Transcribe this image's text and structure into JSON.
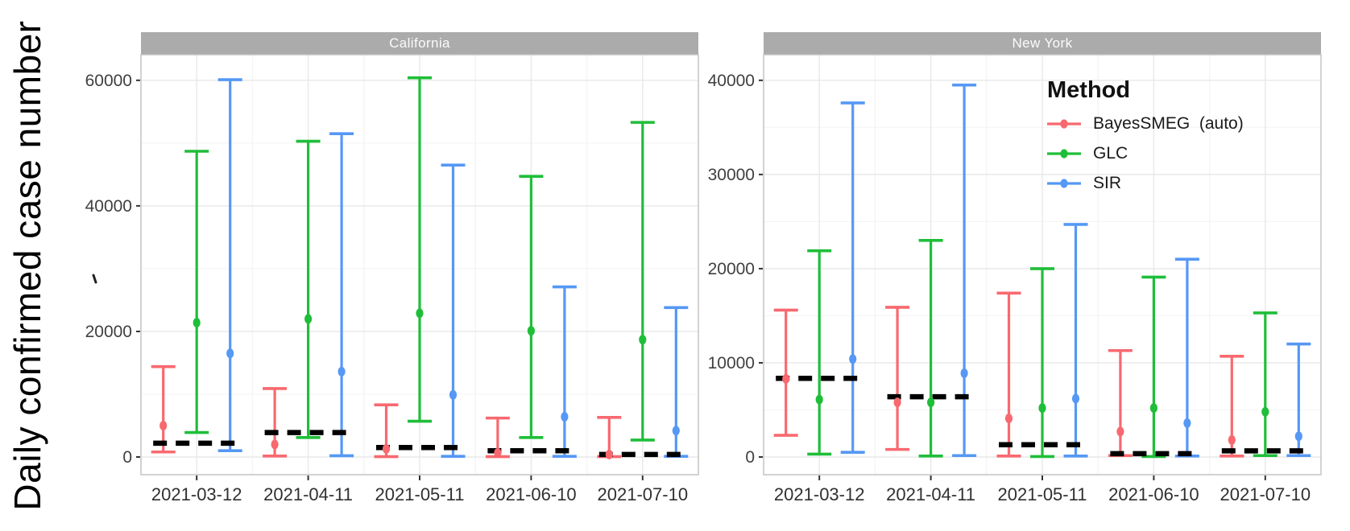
{
  "y_axis_title": "Daily confirmed case number",
  "legend": {
    "title": "Method",
    "items": [
      {
        "label": "BayesSMEG  (auto)",
        "color": "#F8696F"
      },
      {
        "label": "GLC",
        "color": "#1FBE39"
      },
      {
        "label": "SIR",
        "color": "#5598F5"
      }
    ]
  },
  "style_colors": {
    "strip_bg": "#ABABAB",
    "strip_text": "#FBFBFB",
    "panel_border": "#C4C4C4",
    "grid_major": "#E8E8E8",
    "grid_minor": "#F4F4F4",
    "tick_text": "#404040",
    "axis_text": "#303030",
    "truth_dash": "#000000"
  },
  "chart_data": [
    {
      "type": "errorbar",
      "panel": "California",
      "x_categories": [
        "2021-03-12",
        "2021-04-11",
        "2021-05-11",
        "2021-06-10",
        "2021-07-10"
      ],
      "ylim": [
        0,
        60000
      ],
      "yticks": [
        0,
        20000,
        40000,
        60000
      ],
      "grid": true,
      "legend_position": "none",
      "truth_dashed": [
        2200,
        3900,
        1500,
        1000,
        400
      ],
      "series": [
        {
          "name": "BayesSMEG (auto)",
          "color": "#F8696F",
          "lower": [
            800,
            150,
            50,
            50,
            50
          ],
          "mid": [
            5000,
            2000,
            1300,
            650,
            400
          ],
          "upper": [
            14400,
            10900,
            8300,
            6200,
            6300
          ]
        },
        {
          "name": "GLC",
          "color": "#1FBE39",
          "lower": [
            3900,
            3100,
            5700,
            3100,
            2700
          ],
          "mid": [
            21400,
            22000,
            22900,
            20100,
            18700
          ],
          "upper": [
            48700,
            50300,
            60400,
            44700,
            53300
          ]
        },
        {
          "name": "SIR",
          "color": "#5598F5",
          "lower": [
            1000,
            200,
            100,
            100,
            100
          ],
          "mid": [
            16500,
            13600,
            9900,
            6400,
            4200
          ],
          "upper": [
            60100,
            51500,
            46500,
            27100,
            23800
          ]
        }
      ]
    },
    {
      "type": "errorbar",
      "panel": "New York",
      "x_categories": [
        "2021-03-12",
        "2021-04-11",
        "2021-05-11",
        "2021-06-10",
        "2021-07-10"
      ],
      "ylim": [
        0,
        40000
      ],
      "yticks": [
        0,
        10000,
        20000,
        30000,
        40000
      ],
      "grid": true,
      "legend_position": "top-right",
      "truth_dashed": [
        8350,
        6400,
        1300,
        350,
        650
      ],
      "series": [
        {
          "name": "BayesSMEG (auto)",
          "color": "#F8696F",
          "lower": [
            2300,
            800,
            100,
            150,
            100
          ],
          "mid": [
            8300,
            5800,
            4100,
            2700,
            1800
          ],
          "upper": [
            15600,
            15900,
            17400,
            11300,
            10700
          ]
        },
        {
          "name": "GLC",
          "color": "#1FBE39",
          "lower": [
            300,
            100,
            50,
            50,
            150
          ],
          "mid": [
            6100,
            5800,
            5200,
            5200,
            4800
          ],
          "upper": [
            21900,
            23000,
            20000,
            19100,
            15300
          ]
        },
        {
          "name": "SIR",
          "color": "#5598F5",
          "lower": [
            500,
            150,
            100,
            100,
            150
          ],
          "mid": [
            10400,
            8900,
            6200,
            3600,
            2200
          ],
          "upper": [
            37600,
            39500,
            24700,
            21000,
            12000
          ]
        }
      ]
    }
  ]
}
